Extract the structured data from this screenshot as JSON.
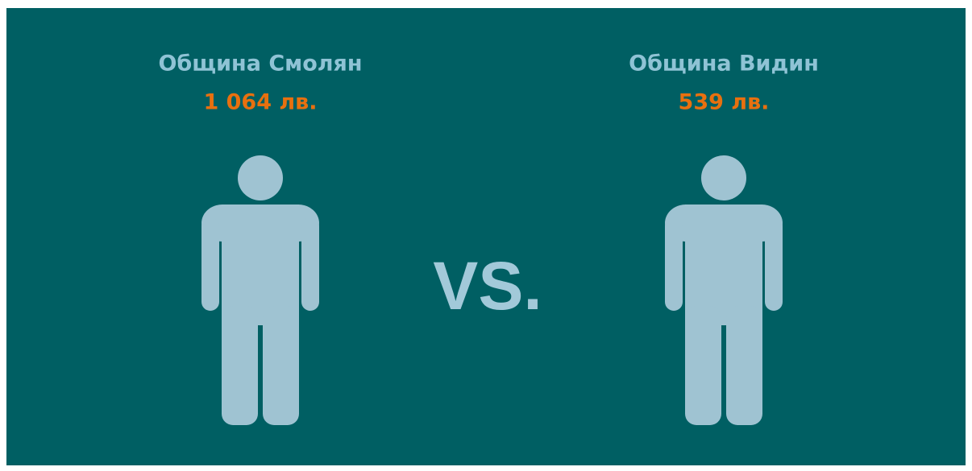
{
  "left": {
    "name": "Община Смолян",
    "amount": "1 064 лв."
  },
  "right": {
    "name": "Община Видин",
    "amount": "539 лв."
  },
  "separator": "VS."
}
